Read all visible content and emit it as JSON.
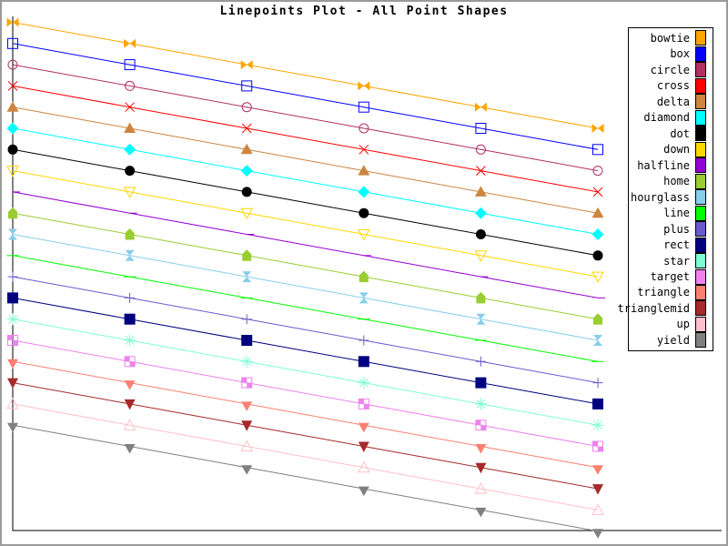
{
  "chart_data": {
    "type": "line",
    "title": "Linepoints Plot - All Point Shapes",
    "xlabel": "",
    "ylabel": "",
    "x": [
      0,
      1,
      2,
      3,
      4,
      5
    ],
    "xlim": [
      0,
      6.07
    ],
    "ylim": [
      0,
      24.3
    ],
    "grid": false,
    "axis_ticks": "none",
    "axis_frame": "left-bottom",
    "legend": {
      "position": "right",
      "border": true,
      "entries": [
        "bowtie",
        "box",
        "circle",
        "cross",
        "delta",
        "diamond",
        "dot",
        "down",
        "halfline",
        "home",
        "hourglass",
        "line",
        "plus",
        "rect",
        "star",
        "target",
        "triangle",
        "trianglemid",
        "up",
        "yield"
      ]
    },
    "series": [
      {
        "name": "bowtie",
        "shape": "bowtie",
        "color": "#FFA500",
        "y": [
          24,
          23,
          22,
          21,
          20,
          19
        ]
      },
      {
        "name": "box",
        "shape": "box",
        "color": "#0000FF",
        "y": [
          23,
          22,
          21,
          20,
          19,
          18
        ]
      },
      {
        "name": "circle",
        "shape": "circle",
        "color": "#B03060",
        "y": [
          22,
          21,
          20,
          19,
          18,
          17
        ]
      },
      {
        "name": "cross",
        "shape": "cross",
        "color": "#FF0000",
        "y": [
          21,
          20,
          19,
          18,
          17,
          16
        ]
      },
      {
        "name": "delta",
        "shape": "delta",
        "color": "#CD853F",
        "y": [
          20,
          19,
          18,
          17,
          16,
          15
        ]
      },
      {
        "name": "diamond",
        "shape": "diamond",
        "color": "#00FFFF",
        "y": [
          19,
          18,
          17,
          16,
          15,
          14
        ]
      },
      {
        "name": "dot",
        "shape": "dot",
        "color": "#000000",
        "y": [
          18,
          17,
          16,
          15,
          14,
          13
        ]
      },
      {
        "name": "down",
        "shape": "down",
        "color": "#FFD700",
        "y": [
          17,
          16,
          15,
          14,
          13,
          12
        ]
      },
      {
        "name": "halfline",
        "shape": "halfline",
        "color": "#9400D3",
        "y": [
          16,
          15,
          14,
          13,
          12,
          11
        ]
      },
      {
        "name": "home",
        "shape": "home",
        "color": "#9ACD32",
        "y": [
          15,
          14,
          13,
          12,
          11,
          10
        ]
      },
      {
        "name": "hourglass",
        "shape": "hourglass",
        "color": "#87CEEB",
        "y": [
          14,
          13,
          12,
          11,
          10,
          9
        ]
      },
      {
        "name": "line",
        "shape": "line",
        "color": "#00FF00",
        "y": [
          13,
          12,
          11,
          10,
          9,
          8
        ]
      },
      {
        "name": "plus",
        "shape": "plus",
        "color": "#6A5ACD",
        "y": [
          12,
          11,
          10,
          9,
          8,
          7
        ]
      },
      {
        "name": "rect",
        "shape": "rect",
        "color": "#000080",
        "y": [
          11,
          10,
          9,
          8,
          7,
          6
        ]
      },
      {
        "name": "star",
        "shape": "star",
        "color": "#7FFFD4",
        "y": [
          10,
          9,
          8,
          7,
          6,
          5
        ]
      },
      {
        "name": "target",
        "shape": "target",
        "color": "#EE82EE",
        "y": [
          9,
          8,
          7,
          6,
          5,
          4
        ]
      },
      {
        "name": "triangle",
        "shape": "triangle",
        "color": "#FA8072",
        "y": [
          8,
          7,
          6,
          5,
          4,
          3
        ]
      },
      {
        "name": "trianglemid",
        "shape": "trianglemid",
        "color": "#A52A2A",
        "y": [
          7,
          6,
          5,
          4,
          3,
          2
        ]
      },
      {
        "name": "up",
        "shape": "up",
        "color": "#FFC0CB",
        "y": [
          6,
          5,
          4,
          3,
          2,
          1
        ]
      },
      {
        "name": "yield",
        "shape": "yield",
        "color": "#808080",
        "y": [
          5,
          4,
          3,
          2,
          1,
          0
        ]
      }
    ]
  }
}
